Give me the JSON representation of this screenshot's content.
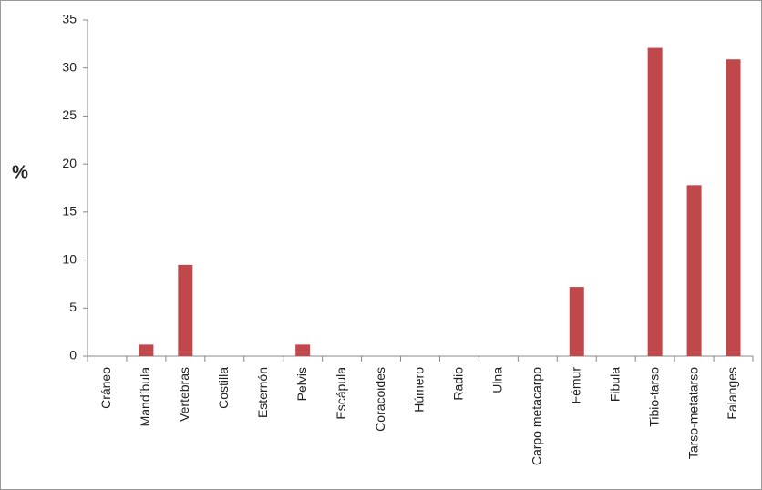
{
  "chart_data": {
    "type": "bar",
    "y_label": "%",
    "categories": [
      "Cráneo",
      "Mandíbula",
      "Vertebras",
      "Costilla",
      "Esternón",
      "Pelvis",
      "Escápula",
      "Coracoides",
      "Húmero",
      "Radio",
      "Ulna",
      "Carpo metacarpo",
      "Fémur",
      "Fibula",
      "Tibio-tarso",
      "Tarso-metatarso",
      "Falanges"
    ],
    "values": [
      0,
      1.2,
      9.5,
      0,
      0,
      1.2,
      0,
      0,
      0,
      0,
      0,
      0,
      7.2,
      0,
      32.1,
      17.8,
      30.9
    ],
    "color": "#c0484b",
    "ylim": [
      0,
      35
    ],
    "yticks": [
      0,
      5,
      10,
      15,
      20,
      25,
      30,
      35
    ],
    "grid": false
  }
}
